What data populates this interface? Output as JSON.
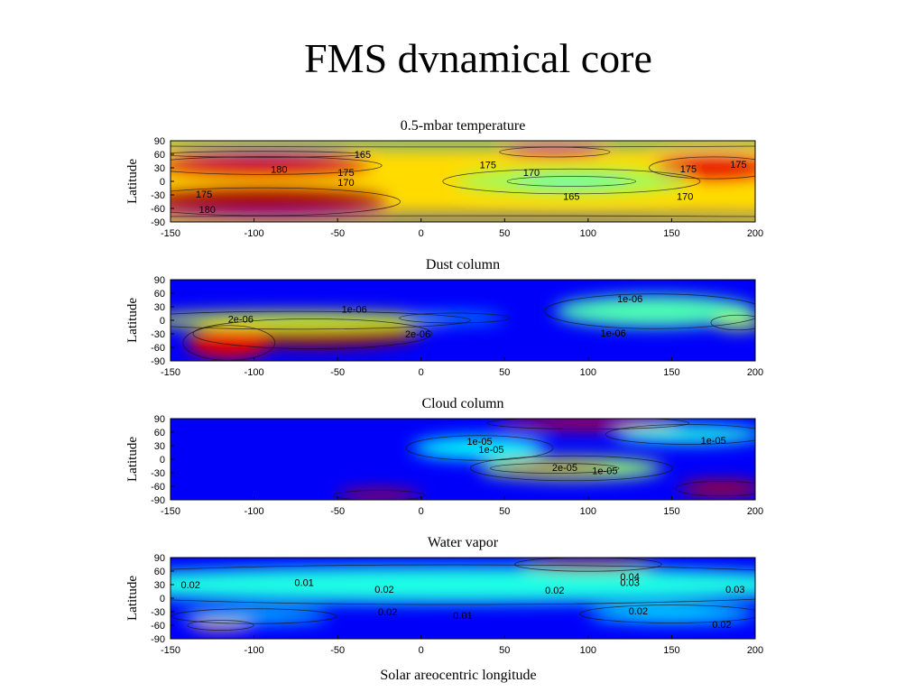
{
  "slide": {
    "title": "FMS dvnamical core"
  },
  "chart_data": [
    {
      "type": "heatmap",
      "title": "0.5-mbar temperature",
      "xlabel": "",
      "ylabel": "Latitude",
      "xlim": [
        -150,
        200
      ],
      "ylim": [
        -90,
        90
      ],
      "xticks": [
        -150,
        -100,
        -50,
        0,
        50,
        100,
        150,
        200
      ],
      "yticks": [
        90,
        60,
        30,
        0,
        -30,
        -60,
        -90
      ],
      "grid": false,
      "background_level": 0.66,
      "blobs": [
        {
          "x": -95,
          "y": -45,
          "rx": 75,
          "ry": 28,
          "level": 0.97
        },
        {
          "x": -95,
          "y": 35,
          "rx": 65,
          "ry": 18,
          "level": 0.92
        },
        {
          "x": 175,
          "y": 30,
          "rx": 35,
          "ry": 22,
          "level": 0.9
        },
        {
          "x": 90,
          "y": 0,
          "rx": 70,
          "ry": 25,
          "level": 0.52
        },
        {
          "x": 90,
          "y": 0,
          "rx": 35,
          "ry": 10,
          "level": 0.42
        },
        {
          "x": 80,
          "y": 65,
          "rx": 30,
          "ry": 10,
          "level": 0.9
        },
        {
          "x": 25,
          "y": 85,
          "rx": 260,
          "ry": 8,
          "level": 0.25
        },
        {
          "x": 25,
          "y": -85,
          "rx": 260,
          "ry": 8,
          "level": 0.15
        },
        {
          "x": -95,
          "y": 60,
          "rx": 55,
          "ry": 6,
          "level": 0.05
        }
      ],
      "contour_labels": [
        {
          "x": -85,
          "y": 27,
          "text": "180"
        },
        {
          "x": -45,
          "y": 20,
          "text": "175"
        },
        {
          "x": -45,
          "y": -2,
          "text": "170"
        },
        {
          "x": -130,
          "y": -28,
          "text": "175"
        },
        {
          "x": -128,
          "y": -62,
          "text": "180"
        },
        {
          "x": 40,
          "y": 37,
          "text": "175"
        },
        {
          "x": 66,
          "y": 20,
          "text": "170"
        },
        {
          "x": 90,
          "y": -33,
          "text": "165"
        },
        {
          "x": 160,
          "y": 28,
          "text": "175"
        },
        {
          "x": 190,
          "y": 38,
          "text": "175"
        },
        {
          "x": 158,
          "y": -33,
          "text": "170"
        },
        {
          "x": -35,
          "y": 60,
          "text": "165"
        }
      ]
    },
    {
      "type": "heatmap",
      "title": "Dust column",
      "xlabel": "",
      "ylabel": "Latitude",
      "xlim": [
        -150,
        200
      ],
      "ylim": [
        -90,
        90
      ],
      "xticks": [
        -150,
        -100,
        -50,
        0,
        50,
        100,
        150,
        200
      ],
      "yticks": [
        90,
        60,
        30,
        0,
        -30,
        -60,
        -90
      ],
      "grid": false,
      "background_level": 0.12,
      "blobs": [
        {
          "x": -65,
          "y": -30,
          "rx": 65,
          "ry": 30,
          "level": 0.97
        },
        {
          "x": -115,
          "y": -50,
          "rx": 25,
          "ry": 35,
          "level": 0.9
        },
        {
          "x": -75,
          "y": 0,
          "rx": 95,
          "ry": 18,
          "level": 0.58
        },
        {
          "x": 140,
          "y": 20,
          "rx": 60,
          "ry": 35,
          "level": 0.45
        },
        {
          "x": 20,
          "y": 5,
          "rx": 30,
          "ry": 10,
          "level": 0.3
        },
        {
          "x": 190,
          "y": -5,
          "rx": 15,
          "ry": 15,
          "level": 0.55
        }
      ],
      "contour_labels": [
        {
          "x": -108,
          "y": 3,
          "text": "2e-06"
        },
        {
          "x": -40,
          "y": 25,
          "text": "1e-06"
        },
        {
          "x": 125,
          "y": 48,
          "text": "1e-06"
        },
        {
          "x": 115,
          "y": -28,
          "text": "1e-06"
        },
        {
          "x": -2,
          "y": -30,
          "text": "2e-06"
        }
      ]
    },
    {
      "type": "heatmap",
      "title": "Cloud column",
      "xlabel": "",
      "ylabel": "Latitude",
      "xlim": [
        -150,
        200
      ],
      "ylim": [
        -90,
        90
      ],
      "xticks": [
        -150,
        -100,
        -50,
        0,
        50,
        100,
        150,
        200
      ],
      "yticks": [
        90,
        60,
        30,
        0,
        -30,
        -60,
        -90
      ],
      "grid": false,
      "background_level": 0.12,
      "blobs": [
        {
          "x": 90,
          "y": -20,
          "rx": 55,
          "ry": 25,
          "level": 0.52
        },
        {
          "x": 80,
          "y": -20,
          "rx": 35,
          "ry": 10,
          "level": 0.92
        },
        {
          "x": 100,
          "y": 80,
          "rx": 55,
          "ry": 12,
          "level": 0.9
        },
        {
          "x": 160,
          "y": 55,
          "rx": 45,
          "ry": 20,
          "level": 0.4
        },
        {
          "x": 180,
          "y": -65,
          "rx": 25,
          "ry": 15,
          "level": 0.93
        },
        {
          "x": -25,
          "y": -80,
          "rx": 25,
          "ry": 10,
          "level": 0.92
        },
        {
          "x": 35,
          "y": 25,
          "rx": 40,
          "ry": 25,
          "level": 0.38
        }
      ],
      "contour_labels": [
        {
          "x": 35,
          "y": 40,
          "text": "1e-05"
        },
        {
          "x": 42,
          "y": 22,
          "text": "1e-05"
        },
        {
          "x": 175,
          "y": 42,
          "text": "1e-05"
        },
        {
          "x": 110,
          "y": -25,
          "text": "1e-05"
        },
        {
          "x": 86,
          "y": -18,
          "text": "2e-05"
        }
      ]
    },
    {
      "type": "heatmap",
      "title": "Water vapor",
      "xlabel": "Solar areocentric longitude",
      "ylabel": "Latitude",
      "xlim": [
        -150,
        200
      ],
      "ylim": [
        -90,
        90
      ],
      "xticks": [
        -150,
        -100,
        -50,
        0,
        50,
        100,
        150,
        200
      ],
      "yticks": [
        90,
        60,
        30,
        0,
        -30,
        -60,
        -90
      ],
      "grid": false,
      "background_level": 0.12,
      "blobs": [
        {
          "x": 20,
          "y": 30,
          "rx": 240,
          "ry": 40,
          "level": 0.4
        },
        {
          "x": 100,
          "y": 75,
          "rx": 40,
          "ry": 14,
          "level": 0.97
        },
        {
          "x": -120,
          "y": -60,
          "rx": 18,
          "ry": 10,
          "level": 0.72
        },
        {
          "x": 150,
          "y": -35,
          "rx": 50,
          "ry": 18,
          "level": 0.36
        },
        {
          "x": -100,
          "y": -40,
          "rx": 45,
          "ry": 15,
          "level": 0.33
        }
      ],
      "contour_labels": [
        {
          "x": -138,
          "y": 30,
          "text": "0.02"
        },
        {
          "x": -70,
          "y": 35,
          "text": "0.01"
        },
        {
          "x": -22,
          "y": 20,
          "text": "0.02"
        },
        {
          "x": 80,
          "y": 18,
          "text": "0.02"
        },
        {
          "x": 125,
          "y": 48,
          "text": "0.04"
        },
        {
          "x": 125,
          "y": 35,
          "text": "0.03"
        },
        {
          "x": 188,
          "y": 20,
          "text": "0.03"
        },
        {
          "x": -20,
          "y": -30,
          "text": "0.02"
        },
        {
          "x": 25,
          "y": -38,
          "text": "0.01"
        },
        {
          "x": 130,
          "y": -28,
          "text": "0.02"
        },
        {
          "x": 180,
          "y": -58,
          "text": "0.02"
        }
      ]
    }
  ]
}
